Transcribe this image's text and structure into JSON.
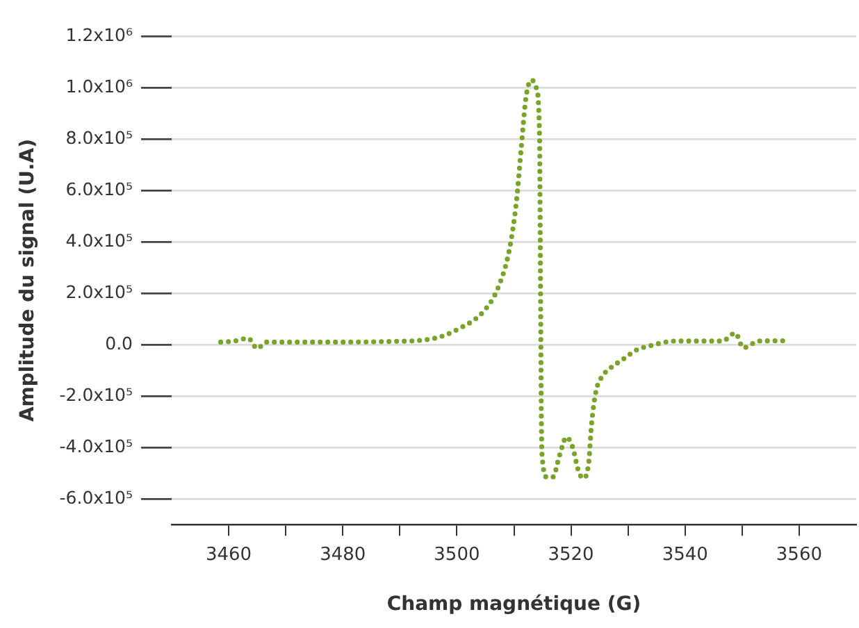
{
  "chart_data": {
    "type": "line",
    "xlabel": "Champ magnétique (G)",
    "ylabel": "Amplitude du signal (U.A)",
    "x": [
      3458.6,
      3461,
      3463.4,
      3465,
      3466.6,
      3470,
      3480,
      3487.5,
      3495.7,
      3500.6,
      3504.7,
      3507.2,
      3509.2,
      3510.4,
      3511.3,
      3512.1,
      3513.1,
      3513.9,
      3514.5,
      3514.6,
      3514.7,
      3514.8,
      3514.9,
      3515.8,
      3516.8,
      3518,
      3519.2,
      3520.3,
      3521.3,
      3522.1,
      3523.1,
      3523.6,
      3524.4,
      3525.6,
      3526.8,
      3529.3,
      3531.7,
      3533.4,
      3538.3,
      3546.5,
      3548.8,
      3550.2,
      3553,
      3557.9
    ],
    "series": [
      {
        "color": "#7aa329",
        "values": [
          10000,
          14000,
          25000,
          -15000,
          10000,
          10000,
          10000,
          12000,
          23000,
          65000,
          130000,
          220000,
          370000,
          550000,
          770000,
          960000,
          1030000,
          1000000,
          800000,
          450000,
          86000,
          -270000,
          -420000,
          -515000,
          -515000,
          -430000,
          -360000,
          -400000,
          -490000,
          -520000,
          -460000,
          -310000,
          -180000,
          -120000,
          -93000,
          -54000,
          -18000,
          -7000,
          14000,
          14000,
          45000,
          -12000,
          14000,
          15000
        ]
      }
    ],
    "xlim": [
      3450,
      3570
    ],
    "xticks": [
      3460,
      {
        "value": 3470,
        "label": null
      },
      3480,
      {
        "value": 3490,
        "label": null
      },
      3500,
      {
        "value": 3510,
        "label": null
      },
      3520,
      {
        "value": 3530,
        "label": null
      },
      3540,
      {
        "value": 3550,
        "label": null
      },
      3560
    ],
    "ylim": [
      -700000,
      1200000
    ],
    "yticks": [
      {
        "value": -600000,
        "label": "-6.0x10⁵"
      },
      {
        "value": -400000,
        "label": "-4.0x10⁵"
      },
      {
        "value": -200000,
        "label": "-2.0x10⁵"
      },
      {
        "value": 0,
        "label": "0.0"
      },
      {
        "value": 200000,
        "label": "2.0x10⁵"
      },
      {
        "value": 400000,
        "label": "4.0x10⁵"
      },
      {
        "value": 600000,
        "label": "6.0x10⁵"
      },
      {
        "value": 800000,
        "label": "8.0x10⁵"
      },
      {
        "value": 1000000,
        "label": "1.0x10⁶"
      },
      {
        "value": 1200000,
        "label": "1.2x10⁶"
      }
    ],
    "grid": "y",
    "marker": "none",
    "line_style": "dotted"
  }
}
